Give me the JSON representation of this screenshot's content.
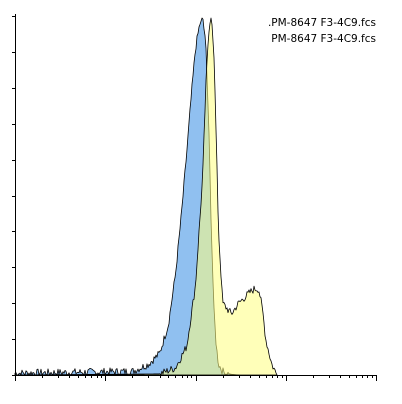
{
  "chart_data": {
    "type": "area",
    "title": "",
    "xlabel": "",
    "ylabel": "",
    "x_scale": "log",
    "xlim": [
      1,
      10000
    ],
    "ylim": [
      0,
      100
    ],
    "legend_placement": "top-right",
    "legend": [
      {
        "label": ".PM-8647 F3-4C9.fcs"
      },
      {
        "label": "PM-8647 F3-4C9.fcs"
      }
    ],
    "series": [
      {
        "color": "#90c0f0",
        "outline": "#000000",
        "x": [
          1,
          20,
          30,
          40,
          50,
          60,
          70,
          80,
          90,
          100,
          110,
          120,
          130,
          140,
          150,
          160,
          170,
          180,
          200,
          220,
          250,
          300
        ],
        "y": [
          0.5,
          1,
          3,
          6,
          14,
          28,
          45,
          62,
          78,
          91,
          97,
          100,
          92,
          70,
          40,
          18,
          8,
          3,
          1,
          0.5,
          0.2,
          0
        ]
      },
      {
        "color": "#ffff80",
        "outline": "#000000",
        "x": [
          1,
          40,
          60,
          80,
          100,
          120,
          130,
          140,
          150,
          160,
          170,
          180,
          200,
          250,
          300,
          400,
          450,
          500,
          520,
          560,
          600,
          700,
          800
        ],
        "y": [
          0,
          0.3,
          2,
          8,
          25,
          55,
          80,
          96,
          100,
          90,
          65,
          40,
          20,
          17,
          20,
          23,
          24,
          24,
          22,
          17,
          10,
          3,
          0
        ]
      }
    ],
    "x_ticks": [
      1,
      2,
      3,
      4,
      5,
      6,
      7,
      8,
      9,
      10,
      20,
      30,
      40,
      50,
      60,
      70,
      80,
      90,
      100,
      200,
      300,
      400,
      500,
      600,
      700,
      800,
      900,
      1000,
      2000,
      3000,
      4000,
      5000,
      6000,
      7000,
      8000,
      9000,
      10000
    ],
    "y_ticks": [
      0,
      10,
      20,
      30,
      40,
      50,
      60,
      70,
      80,
      90,
      100
    ]
  }
}
